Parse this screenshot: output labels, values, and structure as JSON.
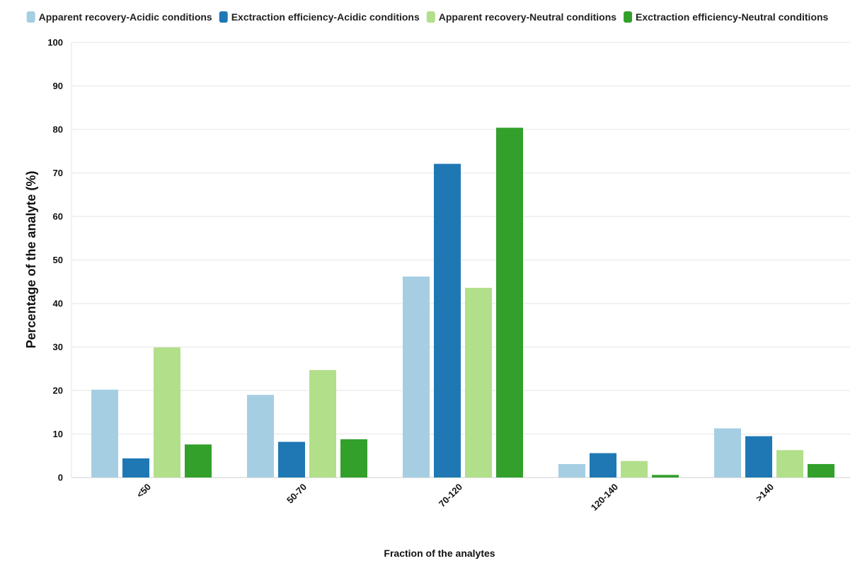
{
  "chart_data": {
    "type": "bar",
    "title": "",
    "xlabel": "Fraction of the analytes",
    "ylabel": "Percentage of the analyte (%)",
    "categories": [
      "<50",
      "50-70",
      "70-120",
      "120-140",
      ">140"
    ],
    "ylim": [
      0,
      100
    ],
    "yticks": [
      0,
      10,
      20,
      30,
      40,
      50,
      60,
      70,
      80,
      90,
      100
    ],
    "grid": "horizontal",
    "legend_position": "top",
    "series": [
      {
        "name": "Apparent recovery-Acidic conditions",
        "color": "#a6cee3",
        "values": [
          20.2,
          19.0,
          46.2,
          3.1,
          11.3
        ]
      },
      {
        "name": "Exctraction efficiency-Acidic conditions",
        "color": "#1f78b4",
        "values": [
          4.4,
          8.2,
          72.1,
          5.6,
          9.5
        ]
      },
      {
        "name": "Apparent recovery-Neutral conditions",
        "color": "#b2df8a",
        "values": [
          29.9,
          24.7,
          43.6,
          3.8,
          6.3
        ]
      },
      {
        "name": "Exctraction efficiency-Neutral conditions",
        "color": "#33a02c",
        "values": [
          7.6,
          8.8,
          80.4,
          0.6,
          3.1
        ]
      }
    ]
  }
}
